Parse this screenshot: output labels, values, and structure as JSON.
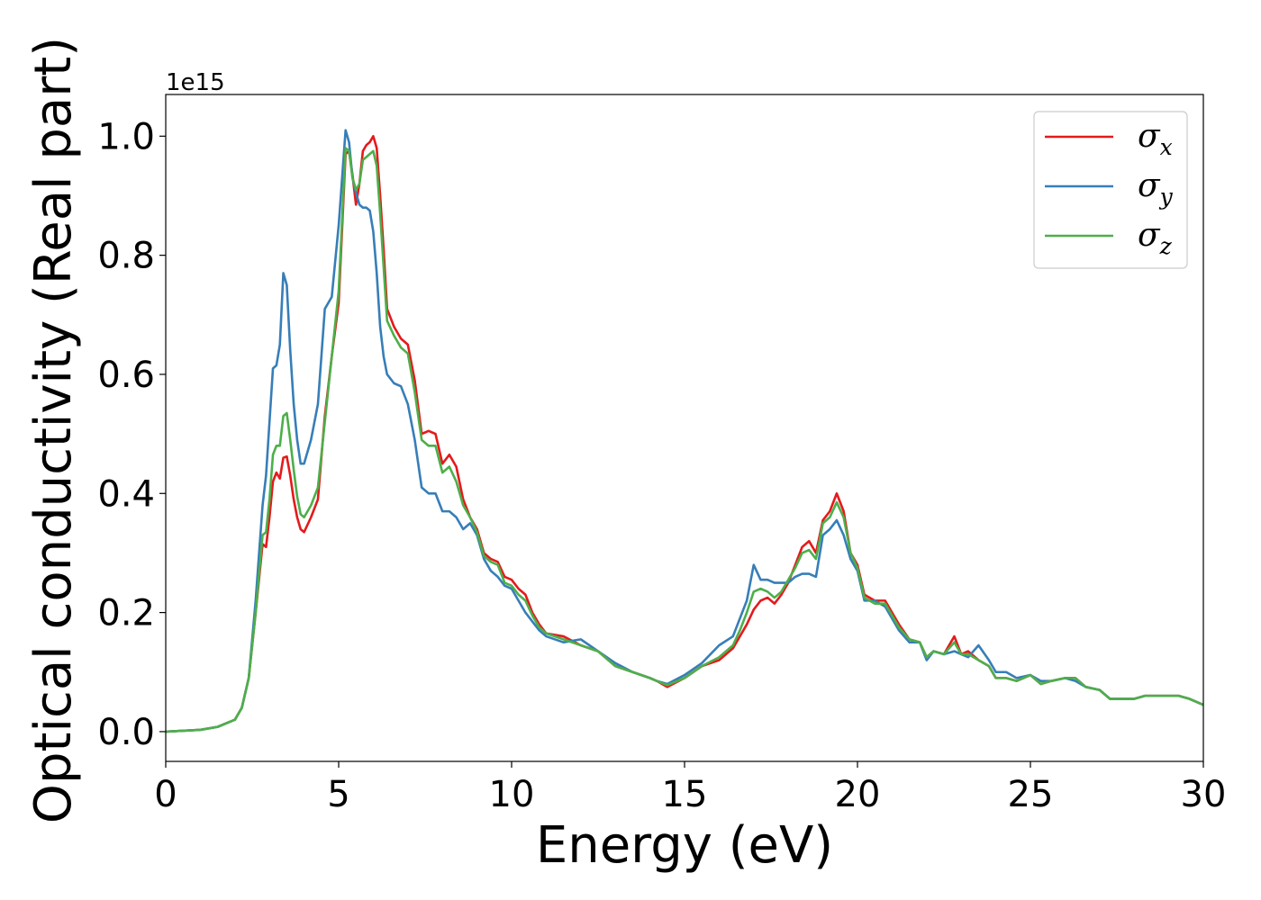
{
  "chart_data": {
    "type": "line",
    "xlabel": "Energy (eV)",
    "ylabel": "Optical conductivity (Real part)",
    "y_offset_text": "1e15",
    "xlim": [
      0,
      30
    ],
    "ylim": [
      -0.05,
      1.07
    ],
    "x_ticks": [
      0,
      5,
      10,
      15,
      20,
      25,
      30
    ],
    "x_tick_labels": [
      "0",
      "5",
      "10",
      "15",
      "20",
      "25",
      "30"
    ],
    "y_ticks": [
      0.0,
      0.2,
      0.4,
      0.6,
      0.8,
      1.0
    ],
    "y_tick_labels": [
      "0.0",
      "0.2",
      "0.4",
      "0.6",
      "0.8",
      "1.0"
    ],
    "grid": false,
    "legend_position": "top-right",
    "series": [
      {
        "name": "σx",
        "label_base": "σ",
        "label_sub": "x",
        "color": "#e41a1c",
        "x": [
          0,
          1.0,
          1.5,
          2.0,
          2.2,
          2.4,
          2.6,
          2.8,
          2.9,
          3.0,
          3.1,
          3.2,
          3.3,
          3.4,
          3.5,
          3.6,
          3.7,
          3.8,
          3.9,
          4.0,
          4.2,
          4.4,
          4.6,
          4.8,
          5.0,
          5.2,
          5.3,
          5.4,
          5.5,
          5.6,
          5.7,
          5.8,
          5.9,
          6.0,
          6.1,
          6.2,
          6.3,
          6.4,
          6.6,
          6.8,
          7.0,
          7.2,
          7.4,
          7.6,
          7.8,
          8.0,
          8.2,
          8.4,
          8.6,
          8.8,
          9.0,
          9.2,
          9.4,
          9.6,
          9.8,
          10.0,
          10.2,
          10.4,
          10.6,
          10.8,
          11.0,
          11.5,
          12.0,
          12.5,
          13.0,
          13.5,
          14.0,
          14.2,
          14.5,
          15.0,
          15.5,
          16.0,
          16.4,
          16.6,
          16.8,
          17.0,
          17.2,
          17.4,
          17.6,
          17.8,
          18.0,
          18.2,
          18.4,
          18.6,
          18.8,
          19.0,
          19.2,
          19.4,
          19.6,
          19.8,
          20.0,
          20.2,
          20.5,
          20.8,
          21.0,
          21.2,
          21.5,
          21.8,
          22.0,
          22.2,
          22.5,
          22.8,
          23.0,
          23.2,
          23.5,
          23.8,
          24.0,
          24.3,
          24.6,
          25.0,
          25.3,
          25.6,
          26.0,
          26.3,
          26.6,
          27.0,
          27.3,
          27.6,
          28.0,
          28.3,
          28.6,
          29.0,
          29.3,
          29.6,
          30.0
        ],
        "y": [
          0.0,
          0.003,
          0.008,
          0.02,
          0.04,
          0.09,
          0.2,
          0.315,
          0.31,
          0.36,
          0.42,
          0.435,
          0.425,
          0.46,
          0.462,
          0.43,
          0.39,
          0.36,
          0.34,
          0.335,
          0.36,
          0.39,
          0.53,
          0.63,
          0.72,
          0.97,
          0.975,
          0.935,
          0.885,
          0.92,
          0.975,
          0.985,
          0.99,
          1.0,
          0.98,
          0.9,
          0.81,
          0.71,
          0.68,
          0.66,
          0.65,
          0.59,
          0.5,
          0.505,
          0.5,
          0.45,
          0.465,
          0.445,
          0.39,
          0.36,
          0.34,
          0.3,
          0.29,
          0.285,
          0.26,
          0.255,
          0.24,
          0.23,
          0.2,
          0.18,
          0.165,
          0.16,
          0.145,
          0.135,
          0.11,
          0.1,
          0.09,
          0.085,
          0.075,
          0.09,
          0.11,
          0.12,
          0.14,
          0.16,
          0.18,
          0.205,
          0.22,
          0.225,
          0.215,
          0.23,
          0.25,
          0.28,
          0.31,
          0.32,
          0.3,
          0.355,
          0.37,
          0.4,
          0.37,
          0.3,
          0.28,
          0.23,
          0.22,
          0.22,
          0.2,
          0.18,
          0.155,
          0.15,
          0.125,
          0.135,
          0.13,
          0.16,
          0.13,
          0.135,
          0.12,
          0.11,
          0.09,
          0.09,
          0.085,
          0.095,
          0.08,
          0.085,
          0.09,
          0.09,
          0.075,
          0.07,
          0.055,
          0.055,
          0.055,
          0.06,
          0.06,
          0.06,
          0.06,
          0.055,
          0.045
        ]
      },
      {
        "name": "σy",
        "label_base": "σ",
        "label_sub": "y",
        "color": "#377eb8",
        "x": [
          0,
          1.0,
          1.5,
          2.0,
          2.2,
          2.4,
          2.6,
          2.8,
          2.9,
          3.0,
          3.1,
          3.2,
          3.3,
          3.4,
          3.5,
          3.6,
          3.7,
          3.8,
          3.9,
          4.0,
          4.2,
          4.4,
          4.6,
          4.8,
          5.0,
          5.2,
          5.3,
          5.4,
          5.5,
          5.6,
          5.7,
          5.8,
          5.9,
          6.0,
          6.1,
          6.2,
          6.3,
          6.4,
          6.6,
          6.8,
          7.0,
          7.2,
          7.4,
          7.6,
          7.8,
          8.0,
          8.2,
          8.4,
          8.6,
          8.8,
          9.0,
          9.2,
          9.4,
          9.6,
          9.8,
          10.0,
          10.2,
          10.4,
          10.6,
          10.8,
          11.0,
          11.5,
          12.0,
          12.5,
          13.0,
          13.5,
          14.0,
          14.2,
          14.5,
          15.0,
          15.5,
          16.0,
          16.4,
          16.6,
          16.8,
          17.0,
          17.2,
          17.4,
          17.6,
          17.8,
          18.0,
          18.2,
          18.4,
          18.6,
          18.8,
          19.0,
          19.2,
          19.4,
          19.6,
          19.8,
          20.0,
          20.2,
          20.5,
          20.8,
          21.0,
          21.2,
          21.5,
          21.8,
          22.0,
          22.2,
          22.5,
          22.8,
          23.0,
          23.2,
          23.5,
          23.8,
          24.0,
          24.3,
          24.6,
          25.0,
          25.3,
          25.6,
          26.0,
          26.3,
          26.6,
          27.0,
          27.3,
          27.6,
          28.0,
          28.3,
          28.6,
          29.0,
          29.3,
          29.6,
          30.0
        ],
        "y": [
          0.0,
          0.003,
          0.008,
          0.02,
          0.04,
          0.09,
          0.22,
          0.38,
          0.43,
          0.52,
          0.61,
          0.615,
          0.65,
          0.77,
          0.75,
          0.64,
          0.55,
          0.49,
          0.45,
          0.45,
          0.49,
          0.55,
          0.71,
          0.73,
          0.85,
          1.01,
          0.99,
          0.93,
          0.905,
          0.885,
          0.88,
          0.88,
          0.875,
          0.84,
          0.77,
          0.68,
          0.63,
          0.6,
          0.585,
          0.58,
          0.55,
          0.49,
          0.41,
          0.4,
          0.4,
          0.37,
          0.37,
          0.36,
          0.34,
          0.35,
          0.33,
          0.29,
          0.27,
          0.26,
          0.245,
          0.24,
          0.22,
          0.2,
          0.185,
          0.17,
          0.16,
          0.15,
          0.155,
          0.135,
          0.115,
          0.1,
          0.09,
          0.085,
          0.08,
          0.095,
          0.115,
          0.145,
          0.16,
          0.19,
          0.22,
          0.28,
          0.255,
          0.255,
          0.25,
          0.25,
          0.25,
          0.26,
          0.265,
          0.265,
          0.26,
          0.33,
          0.34,
          0.355,
          0.33,
          0.29,
          0.27,
          0.22,
          0.22,
          0.21,
          0.19,
          0.17,
          0.15,
          0.15,
          0.12,
          0.135,
          0.13,
          0.135,
          0.13,
          0.125,
          0.145,
          0.12,
          0.1,
          0.1,
          0.09,
          0.095,
          0.085,
          0.085,
          0.09,
          0.085,
          0.075,
          0.07,
          0.055,
          0.055,
          0.055,
          0.06,
          0.06,
          0.06,
          0.06,
          0.055,
          0.045
        ]
      },
      {
        "name": "σz",
        "label_base": "σ",
        "label_sub": "z",
        "color": "#4daf4a",
        "x": [
          0,
          1.0,
          1.5,
          2.0,
          2.2,
          2.4,
          2.6,
          2.8,
          2.9,
          3.0,
          3.1,
          3.2,
          3.3,
          3.4,
          3.5,
          3.6,
          3.7,
          3.8,
          3.9,
          4.0,
          4.2,
          4.4,
          4.6,
          4.8,
          5.0,
          5.2,
          5.3,
          5.4,
          5.5,
          5.6,
          5.7,
          5.8,
          5.9,
          6.0,
          6.1,
          6.2,
          6.3,
          6.4,
          6.6,
          6.8,
          7.0,
          7.2,
          7.4,
          7.6,
          7.8,
          8.0,
          8.2,
          8.4,
          8.6,
          8.8,
          9.0,
          9.2,
          9.4,
          9.6,
          9.8,
          10.0,
          10.2,
          10.4,
          10.6,
          10.8,
          11.0,
          11.5,
          12.0,
          12.5,
          13.0,
          13.5,
          14.0,
          14.2,
          14.5,
          15.0,
          15.5,
          16.0,
          16.4,
          16.6,
          16.8,
          17.0,
          17.2,
          17.4,
          17.6,
          17.8,
          18.0,
          18.2,
          18.4,
          18.6,
          18.8,
          19.0,
          19.2,
          19.4,
          19.6,
          19.8,
          20.0,
          20.2,
          20.5,
          20.8,
          21.0,
          21.2,
          21.5,
          21.8,
          22.0,
          22.2,
          22.5,
          22.8,
          23.0,
          23.2,
          23.5,
          23.8,
          24.0,
          24.3,
          24.6,
          25.0,
          25.3,
          25.6,
          26.0,
          26.3,
          26.6,
          27.0,
          27.3,
          27.6,
          28.0,
          28.3,
          28.6,
          29.0,
          29.3,
          29.6,
          30.0
        ],
        "y": [
          0.0,
          0.003,
          0.008,
          0.02,
          0.04,
          0.09,
          0.2,
          0.33,
          0.335,
          0.39,
          0.465,
          0.48,
          0.48,
          0.53,
          0.535,
          0.49,
          0.44,
          0.395,
          0.365,
          0.36,
          0.38,
          0.41,
          0.52,
          0.63,
          0.74,
          0.98,
          0.975,
          0.93,
          0.91,
          0.92,
          0.96,
          0.965,
          0.97,
          0.975,
          0.95,
          0.87,
          0.78,
          0.69,
          0.665,
          0.645,
          0.635,
          0.57,
          0.49,
          0.48,
          0.48,
          0.435,
          0.445,
          0.42,
          0.38,
          0.36,
          0.335,
          0.295,
          0.285,
          0.28,
          0.25,
          0.245,
          0.23,
          0.22,
          0.195,
          0.175,
          0.165,
          0.155,
          0.145,
          0.135,
          0.11,
          0.1,
          0.09,
          0.085,
          0.078,
          0.09,
          0.11,
          0.125,
          0.145,
          0.17,
          0.2,
          0.235,
          0.24,
          0.235,
          0.225,
          0.235,
          0.255,
          0.275,
          0.3,
          0.305,
          0.29,
          0.35,
          0.36,
          0.385,
          0.36,
          0.3,
          0.275,
          0.225,
          0.215,
          0.215,
          0.195,
          0.175,
          0.155,
          0.15,
          0.125,
          0.135,
          0.13,
          0.15,
          0.13,
          0.13,
          0.12,
          0.11,
          0.09,
          0.09,
          0.085,
          0.095,
          0.08,
          0.085,
          0.09,
          0.09,
          0.075,
          0.07,
          0.055,
          0.055,
          0.055,
          0.06,
          0.06,
          0.06,
          0.06,
          0.055,
          0.045
        ]
      }
    ]
  }
}
